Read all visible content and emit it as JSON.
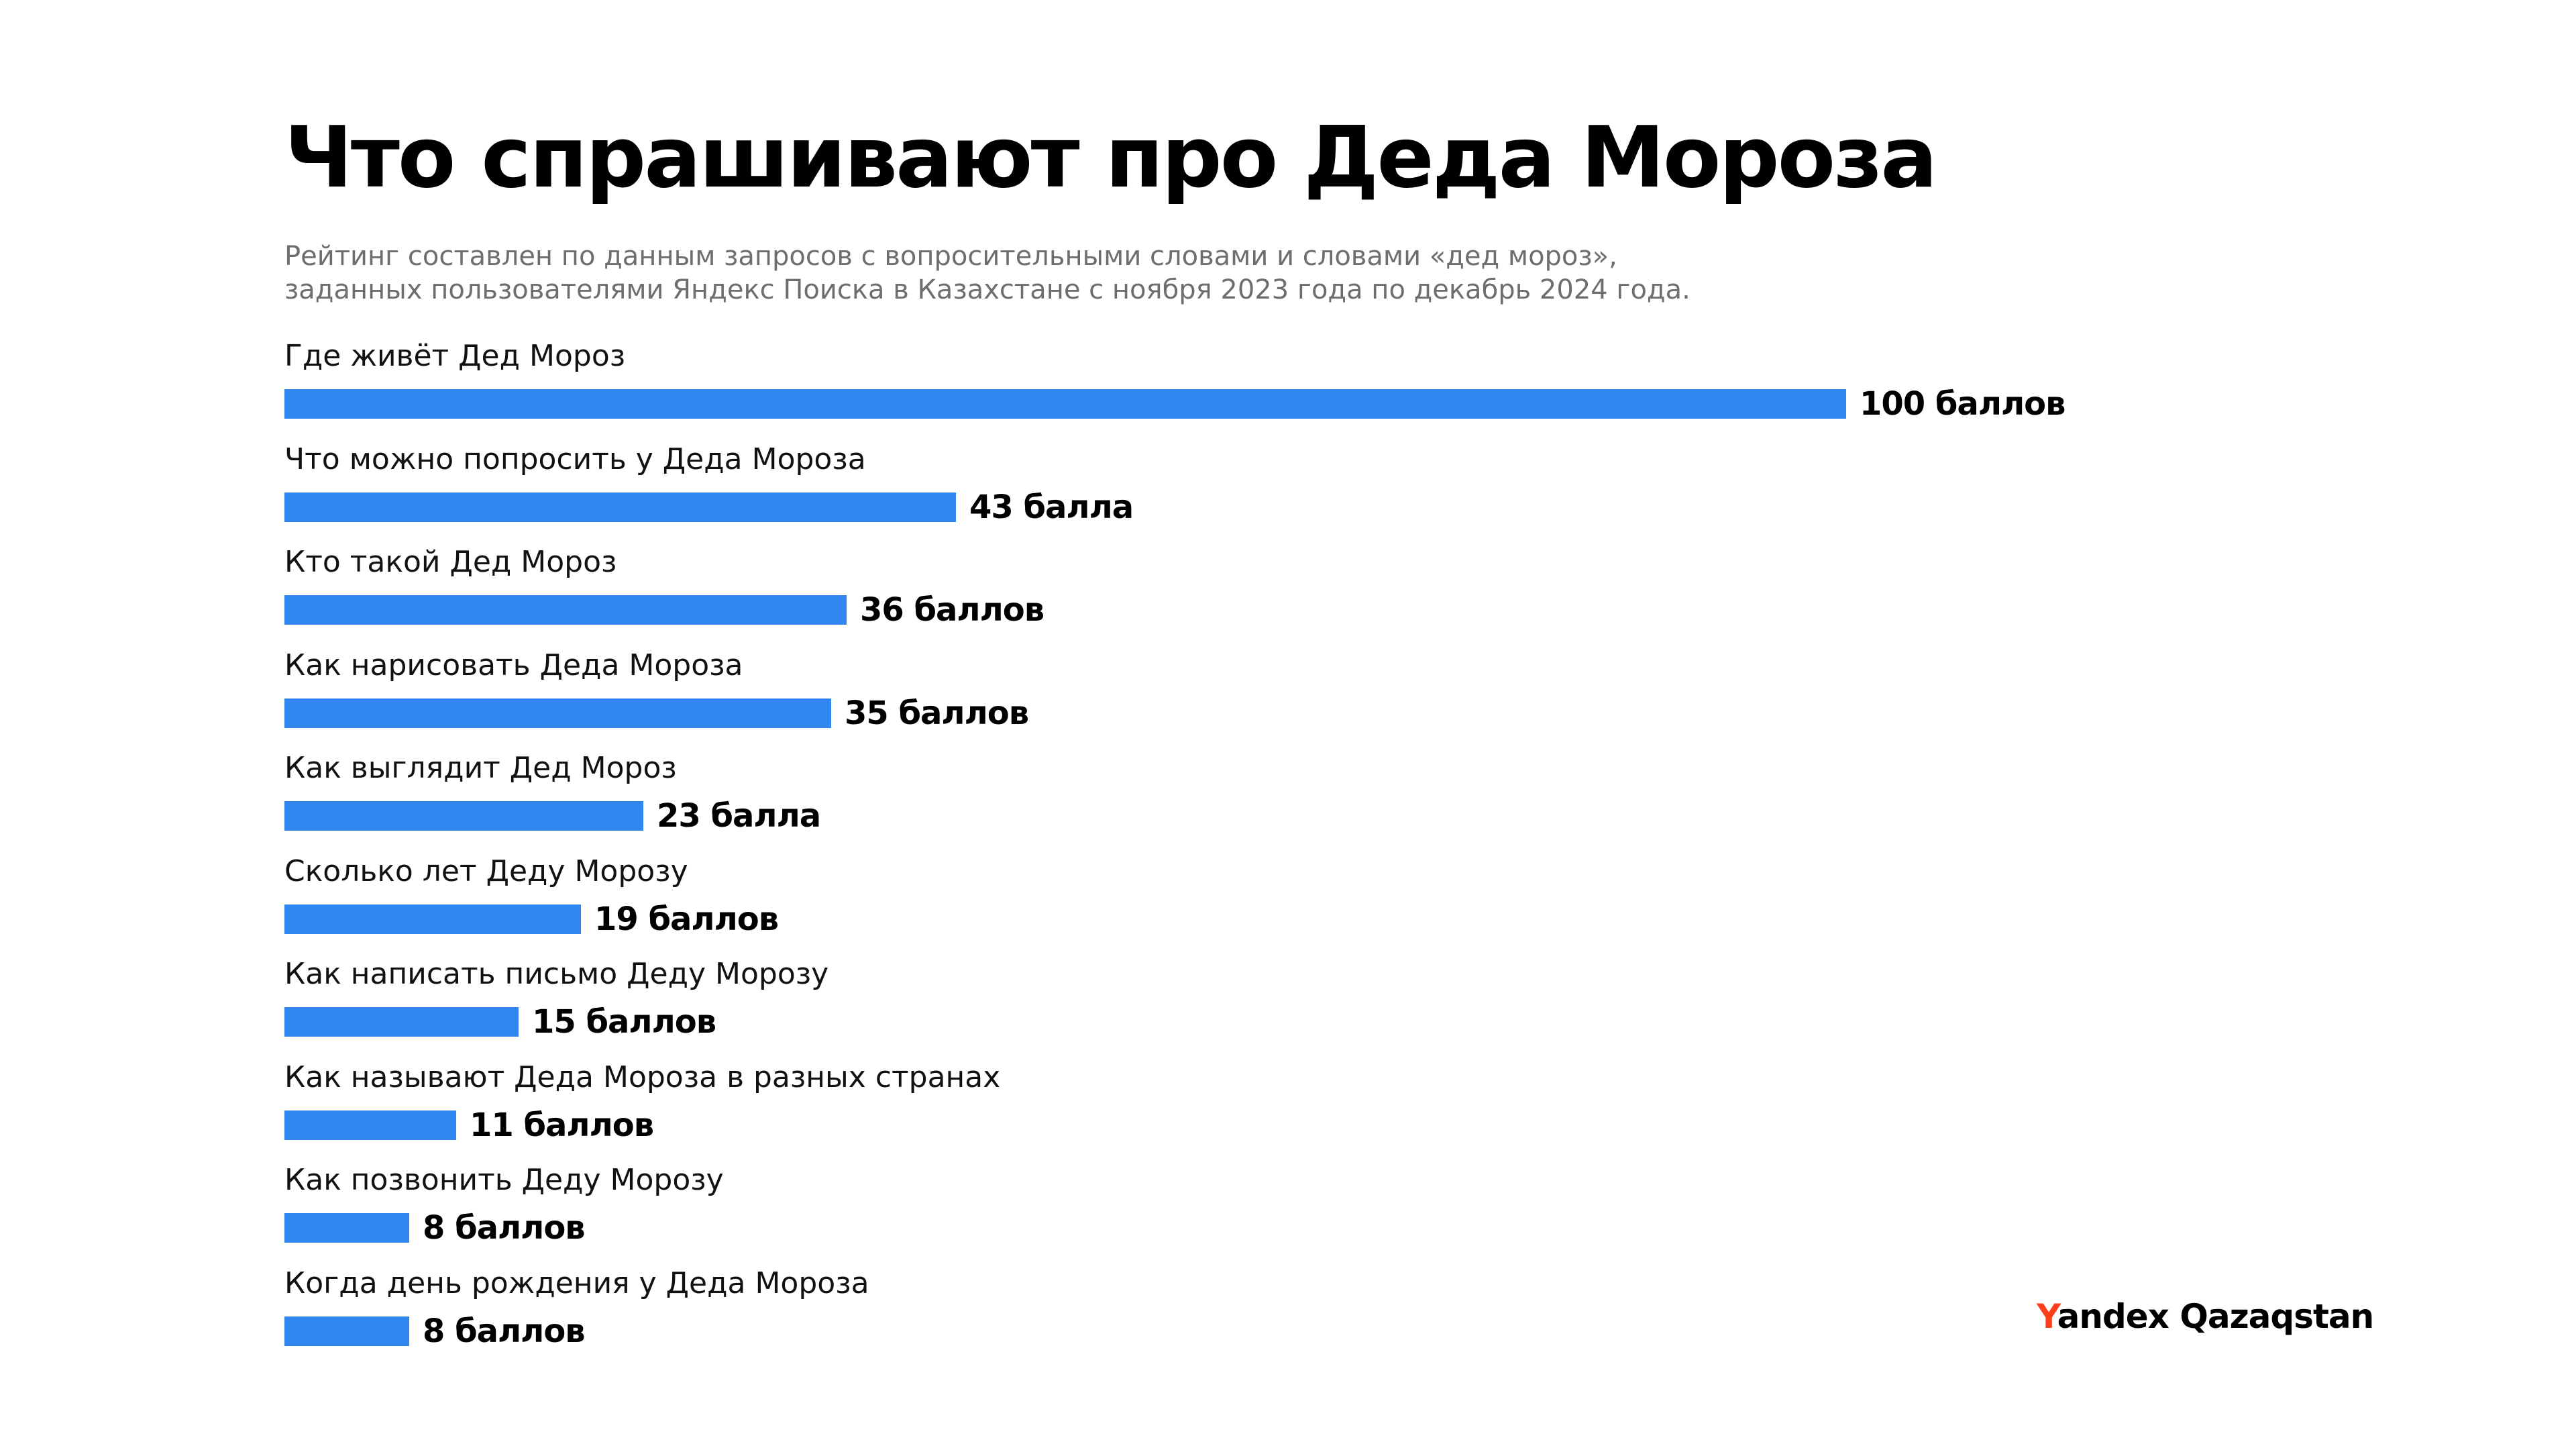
{
  "chart_data": {
    "type": "bar",
    "orientation": "horizontal",
    "title": "Что спрашивают про Деда Мороза",
    "subtitle": [
      "Рейтинг составлен по данным запросов с вопросительными словами и словами «дед мороз»,",
      "заданных пользователями Яндекс Поиска в Казахстане с ноября 2023 года по декабрь 2024 года."
    ],
    "categories": [
      "Где живёт Дед Мороз",
      "Что можно попросить у Деда Мороза",
      "Кто такой Дед Мороз",
      "Как нарисовать Деда Мороза",
      "Как выглядит Дед Мороз",
      "Сколько лет Деду Морозу",
      "Как написать письмо Деду Морозу",
      "Как называют Деда Мороза в разных странах",
      "Как позвонить Деду Морозу",
      "Когда день рождения у Деда Мороза"
    ],
    "values": [
      100,
      43,
      36,
      35,
      23,
      19,
      15,
      11,
      8,
      8
    ],
    "value_labels": [
      "100 баллов",
      "43 балла",
      "36 баллов",
      "35 баллов",
      "23 балла",
      "19 баллов",
      "15 баллов",
      "11 баллов",
      "8 баллов",
      "8 баллов"
    ],
    "xlim": [
      0,
      100
    ],
    "grid": false,
    "legend": "none",
    "bar_color": "#3187f2"
  },
  "brand": {
    "first_letter": "Y",
    "rest": "andex Qazaqstan",
    "accent_color": "#fc3f1d"
  }
}
